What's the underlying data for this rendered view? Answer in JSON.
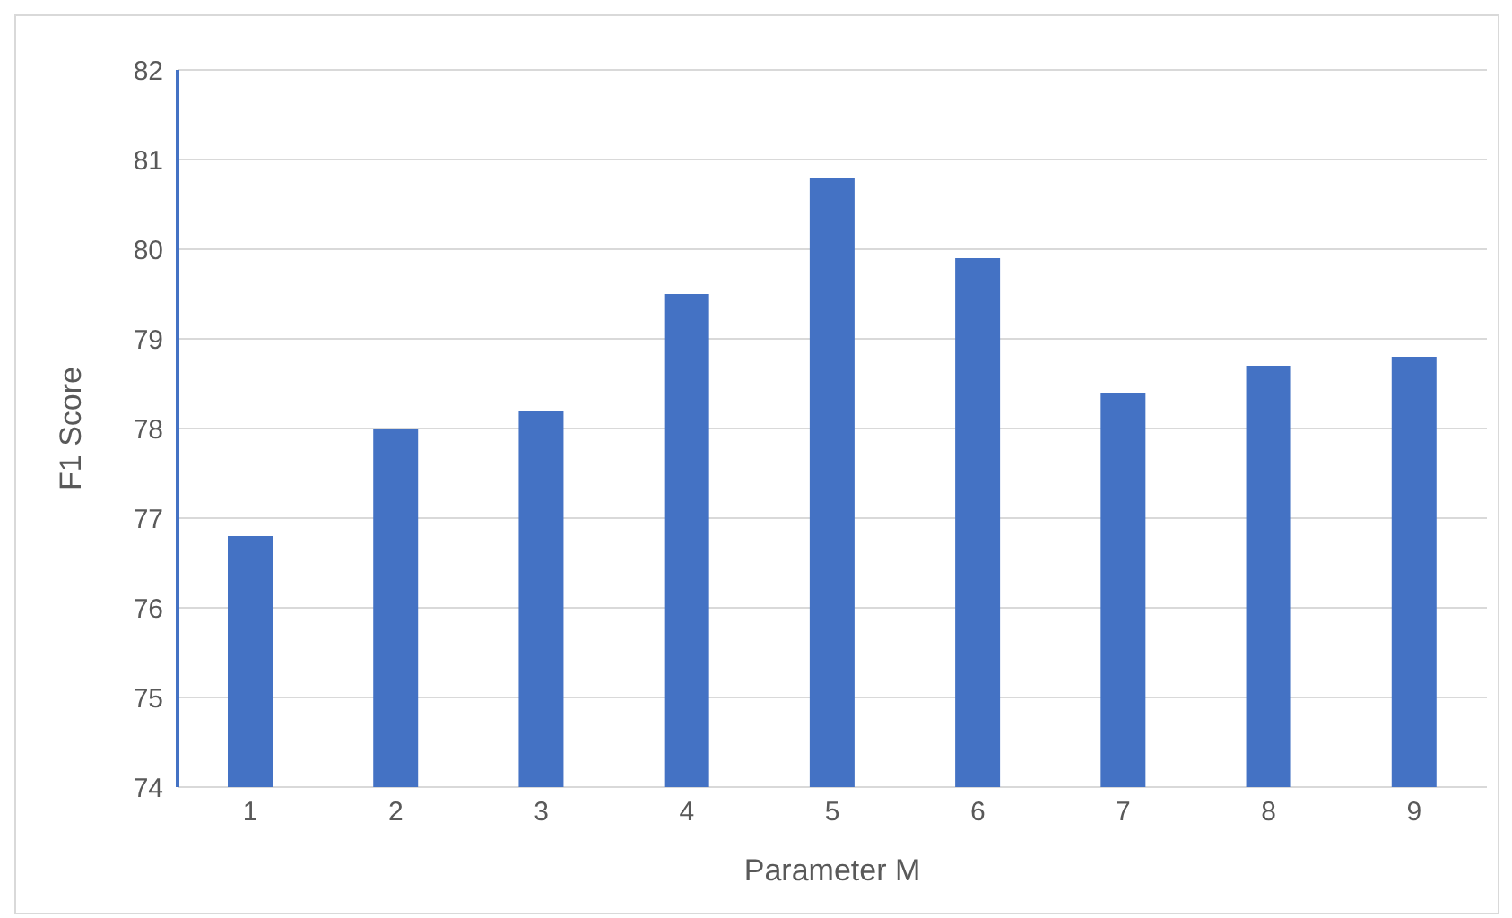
{
  "chart_data": {
    "type": "bar",
    "xlabel": "Parameter M",
    "ylabel": "F1 Score",
    "categories": [
      "1",
      "2",
      "3",
      "4",
      "5",
      "6",
      "7",
      "8",
      "9"
    ],
    "series": [
      {
        "color": "#4472c4",
        "values": [
          76.8,
          78.0,
          78.2,
          79.5,
          80.8,
          79.9,
          78.4,
          78.7,
          78.8
        ]
      }
    ],
    "ylim": [
      74,
      82
    ],
    "yticks": [
      74,
      75,
      76,
      77,
      78,
      79,
      80,
      81,
      82
    ],
    "grid": "y",
    "legend": false
  }
}
